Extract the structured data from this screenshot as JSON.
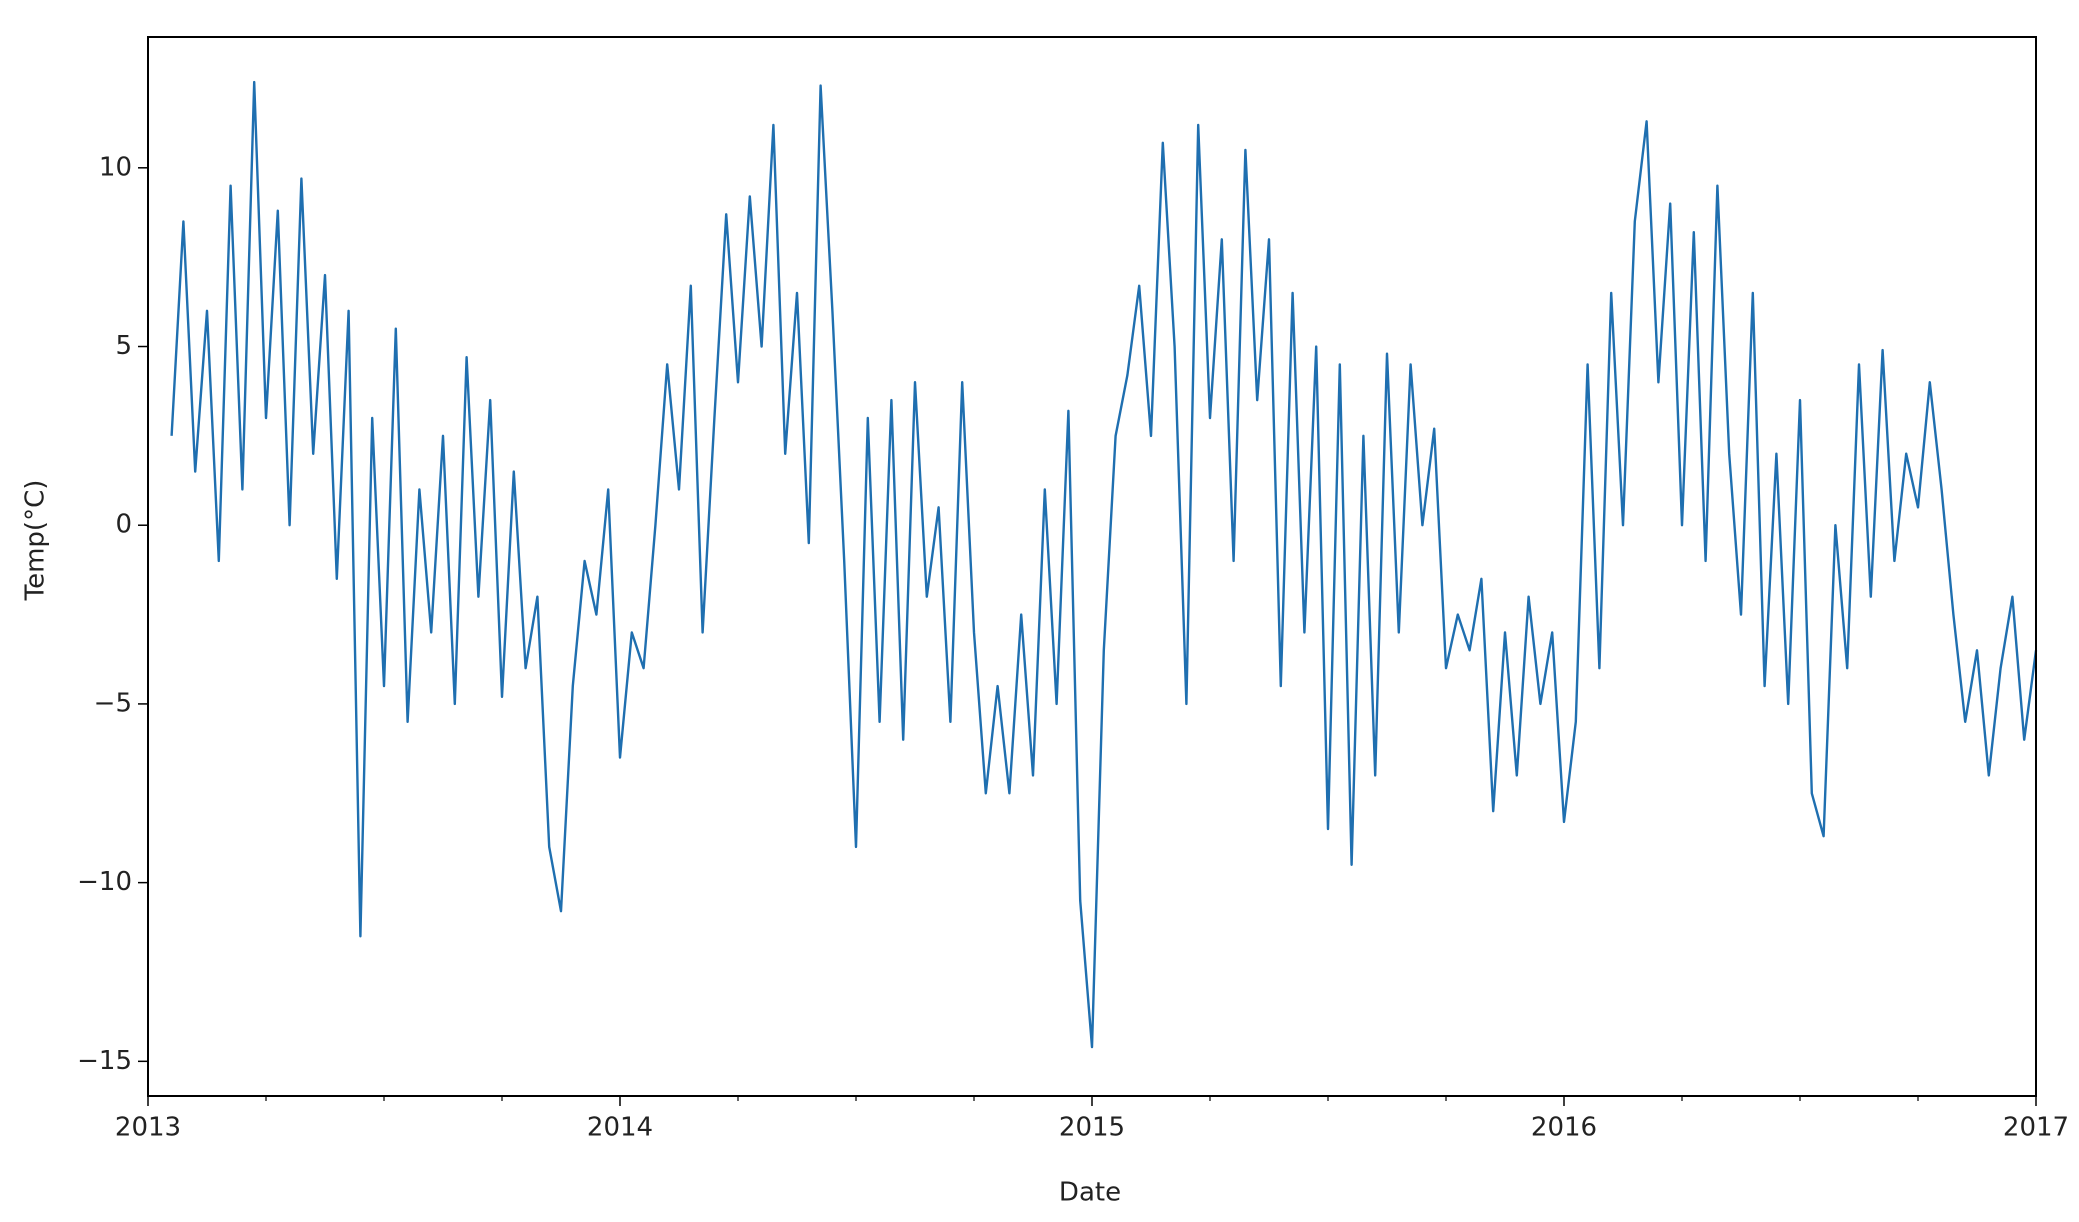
{
  "chart_data": {
    "type": "line",
    "xlabel": "Date",
    "ylabel": "Temp(°C)",
    "color": "#1f6fb0",
    "xlim": [
      2013,
      2017
    ],
    "xticks": [
      2013,
      2014,
      2015,
      2016,
      2017
    ],
    "xminorticks": [
      2013.25,
      2013.5,
      2013.75,
      2014.25,
      2014.5,
      2014.75,
      2015.25,
      2015.5,
      2015.75,
      2016.25,
      2016.5,
      2016.75
    ],
    "ylim": [
      -15.97,
      13.66
    ],
    "yticks": [
      {
        "value": -15,
        "label": "−15"
      },
      {
        "value": -10,
        "label": "−10"
      },
      {
        "value": -5,
        "label": "−5"
      },
      0,
      5,
      10
    ],
    "grid": false,
    "x": [
      2013.05,
      2013.075,
      2013.1,
      2013.125,
      2013.15,
      2013.175,
      2013.2,
      2013.225,
      2013.25,
      2013.275,
      2013.3,
      2013.325,
      2013.35,
      2013.375,
      2013.4,
      2013.425,
      2013.45,
      2013.475,
      2013.5,
      2013.525,
      2013.55,
      2013.575,
      2013.6,
      2013.625,
      2013.65,
      2013.675,
      2013.7,
      2013.725,
      2013.75,
      2013.775,
      2013.8,
      2013.825,
      2013.85,
      2013.875,
      2013.9,
      2013.925,
      2013.95,
      2013.975,
      2014.0,
      2014.025,
      2014.05,
      2014.075,
      2014.1,
      2014.125,
      2014.15,
      2014.175,
      2014.2,
      2014.225,
      2014.25,
      2014.275,
      2014.3,
      2014.325,
      2014.35,
      2014.375,
      2014.4,
      2014.425,
      2014.45,
      2014.475,
      2014.5,
      2014.525,
      2014.55,
      2014.575,
      2014.6,
      2014.625,
      2014.65,
      2014.675,
      2014.7,
      2014.725,
      2014.75,
      2014.775,
      2014.8,
      2014.825,
      2014.85,
      2014.875,
      2014.9,
      2014.925,
      2014.95,
      2014.975,
      2015.0,
      2015.025,
      2015.05,
      2015.075,
      2015.1,
      2015.125,
      2015.15,
      2015.175,
      2015.2,
      2015.225,
      2015.25,
      2015.275,
      2015.3,
      2015.325,
      2015.35,
      2015.375,
      2015.4,
      2015.425,
      2015.45,
      2015.475,
      2015.5,
      2015.525,
      2015.55,
      2015.575,
      2015.6,
      2015.625,
      2015.65,
      2015.675,
      2015.7,
      2015.725,
      2015.75,
      2015.775,
      2015.8,
      2015.825,
      2015.85,
      2015.875,
      2015.9,
      2015.925,
      2015.95,
      2015.975,
      2016.0,
      2016.025,
      2016.05,
      2016.075,
      2016.1,
      2016.125,
      2016.15,
      2016.175,
      2016.2,
      2016.225,
      2016.25,
      2016.275,
      2016.3,
      2016.325,
      2016.35,
      2016.375,
      2016.4,
      2016.425,
      2016.45,
      2016.475,
      2016.5,
      2016.525,
      2016.55,
      2016.575,
      2016.6,
      2016.625,
      2016.65,
      2016.675,
      2016.7,
      2016.725,
      2016.75,
      2016.775,
      2016.8,
      2016.825,
      2016.85,
      2016.875,
      2016.9,
      2016.925,
      2016.95,
      2016.975,
      2017.0
    ],
    "values": [
      2.5,
      8.5,
      1.5,
      6,
      -1,
      9.5,
      1,
      12.4,
      3,
      8.8,
      0,
      9.7,
      2,
      7,
      -1.5,
      6,
      -11.5,
      3,
      -4.5,
      5.5,
      -5.5,
      1,
      -3,
      2.5,
      -5,
      4.7,
      -2,
      3.5,
      -4.8,
      1.5,
      -4,
      -2,
      -9,
      -10.8,
      -4.5,
      -1,
      -2.5,
      1,
      -6.5,
      -3,
      -4,
      0,
      4.5,
      1,
      6.7,
      -3,
      3,
      8.7,
      4,
      9.2,
      5,
      11.2,
      2,
      6.5,
      -0.5,
      12.3,
      6,
      -1,
      -9,
      3,
      -5.5,
      3.5,
      -6,
      4,
      -2,
      0.5,
      -5.5,
      4,
      -3,
      -7.5,
      -4.5,
      -7.5,
      -2.5,
      -7,
      1,
      -5,
      3.2,
      -10.5,
      -14.6,
      -3.5,
      2.5,
      4.2,
      6.7,
      2.5,
      10.7,
      5,
      -5,
      11.2,
      3,
      8,
      -1,
      10.5,
      3.5,
      8,
      -4.5,
      6.5,
      -3,
      5,
      -8.5,
      4.5,
      -9.5,
      2.5,
      -7,
      4.8,
      -3,
      4.5,
      0,
      2.7,
      -4,
      -2.5,
      -3.5,
      -1.5,
      -8,
      -3,
      -7,
      -2,
      -5,
      -3,
      -8.3,
      -5.5,
      4.5,
      -4,
      6.5,
      0,
      8.5,
      11.3,
      4,
      9,
      0,
      8.2,
      -1,
      9.5,
      2,
      -2.5,
      6.5,
      -4.5,
      2,
      -5,
      3.5,
      -7.5,
      -8.7,
      0,
      -4,
      4.5,
      -2,
      4.9,
      -1,
      2,
      0.5,
      4,
      1,
      -2.5,
      -5.5,
      -3.5,
      -7,
      -4,
      -2,
      -6,
      -3.5
    ]
  }
}
